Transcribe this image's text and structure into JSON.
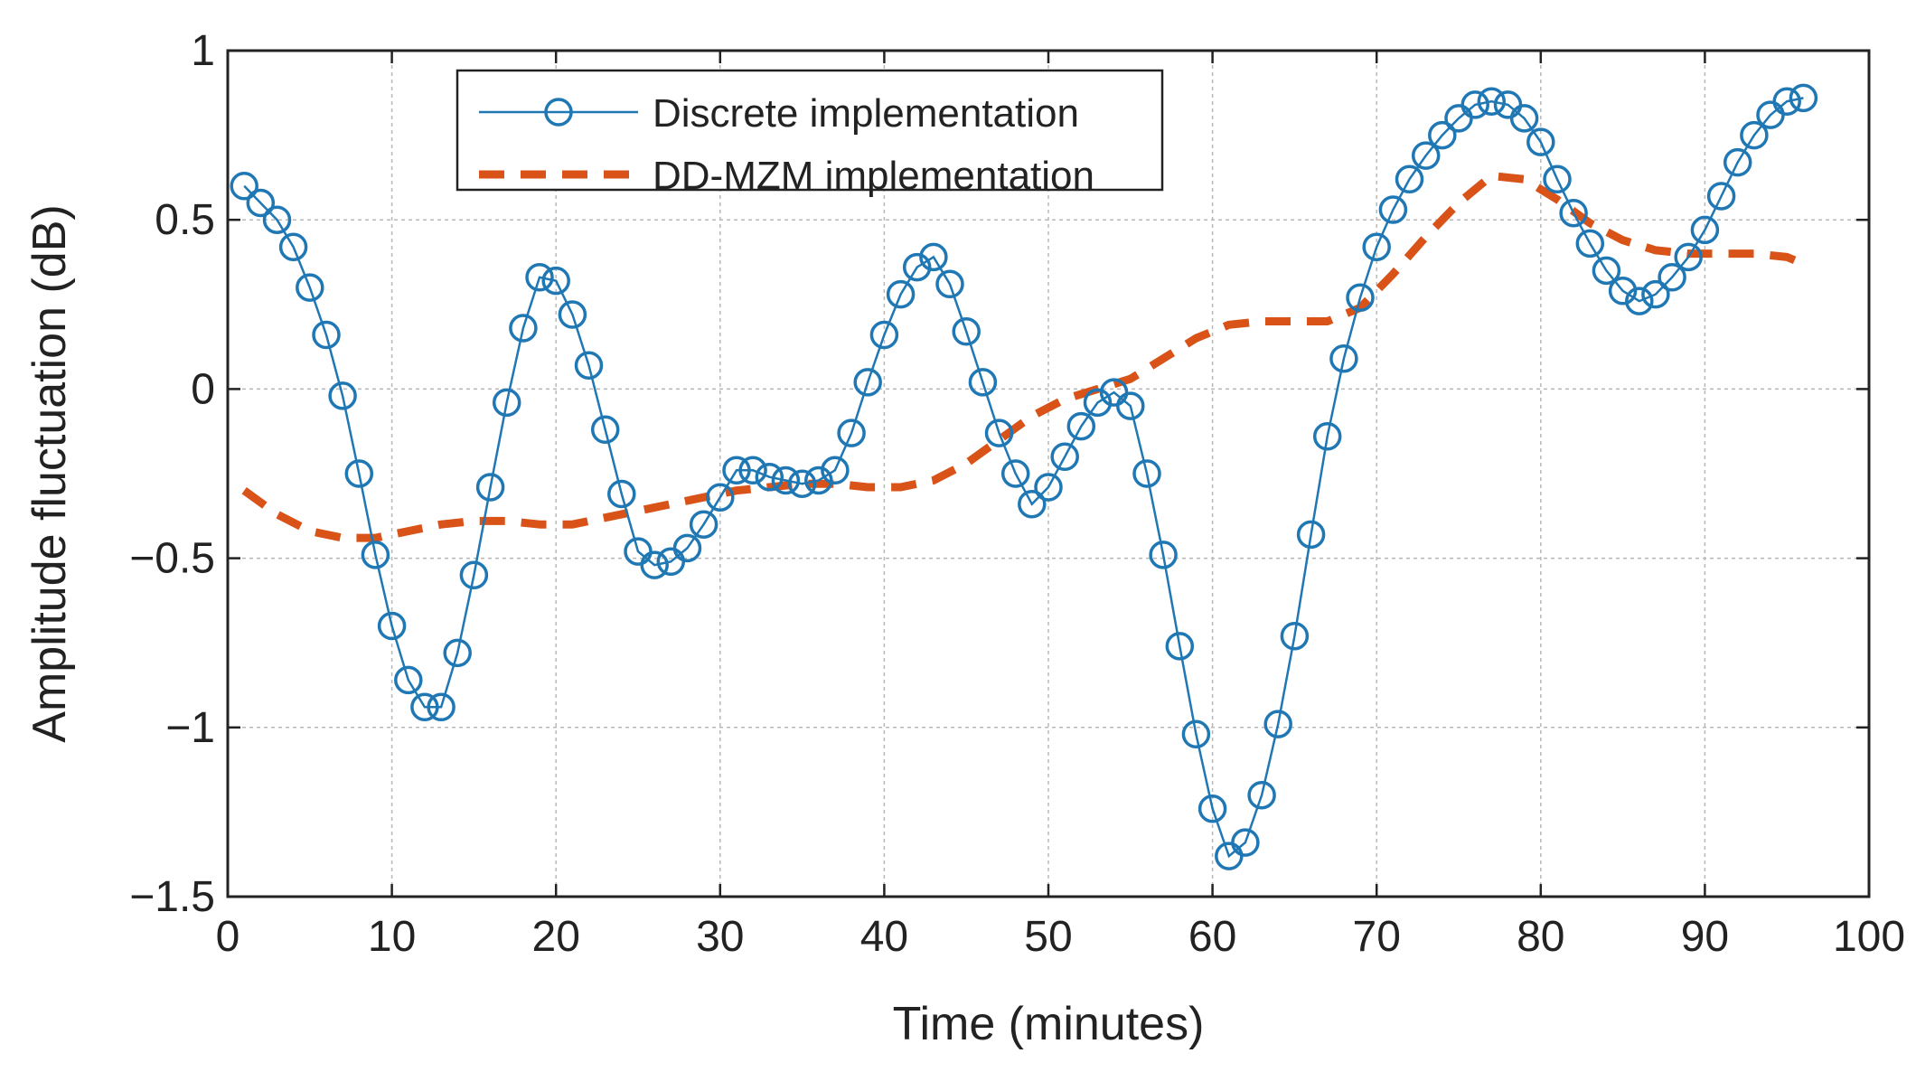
{
  "chart_data": {
    "type": "line",
    "title": "",
    "xlabel": "Time (minutes)",
    "ylabel": "Amplitude fluctuation (dB)",
    "xlim": [
      0,
      100
    ],
    "ylim": [
      -1.5,
      1
    ],
    "xticks": [
      0,
      10,
      20,
      30,
      40,
      50,
      60,
      70,
      80,
      90,
      100
    ],
    "yticks": [
      1,
      0.5,
      0,
      -0.5,
      -1,
      -1.5
    ],
    "ytick_labels": [
      "1",
      "0.5",
      "0",
      "−0.5",
      "−1",
      "−1.5"
    ],
    "grid": true,
    "legend_position": "top-center",
    "series": [
      {
        "name": "Discrete implementation",
        "color": "#1f77b4",
        "style": "solid-line-circle-markers",
        "x": [
          1,
          2,
          3,
          4,
          5,
          6,
          7,
          8,
          9,
          10,
          11,
          12,
          13,
          14,
          15,
          16,
          17,
          18,
          19,
          20,
          21,
          22,
          23,
          24,
          25,
          26,
          27,
          28,
          29,
          30,
          31,
          32,
          33,
          34,
          35,
          36,
          37,
          38,
          39,
          40,
          41,
          42,
          43,
          44,
          45,
          46,
          47,
          48,
          49,
          50,
          51,
          52,
          53,
          54,
          55,
          56,
          57,
          58,
          59,
          60,
          61,
          62,
          63,
          64,
          65,
          66,
          67,
          68,
          69,
          70,
          71,
          72,
          73,
          74,
          75,
          76,
          77,
          78,
          79,
          80,
          81,
          82,
          83,
          84,
          85,
          86,
          87,
          88,
          89,
          90,
          91,
          92,
          93,
          94,
          95,
          96
        ],
        "values": [
          0.6,
          0.55,
          0.5,
          0.42,
          0.3,
          0.16,
          -0.02,
          -0.25,
          -0.49,
          -0.7,
          -0.86,
          -0.94,
          -0.94,
          -0.78,
          -0.55,
          -0.29,
          -0.04,
          0.18,
          0.33,
          0.32,
          0.22,
          0.07,
          -0.12,
          -0.31,
          -0.48,
          -0.52,
          -0.51,
          -0.47,
          -0.4,
          -0.32,
          -0.24,
          -0.24,
          -0.26,
          -0.27,
          -0.28,
          -0.27,
          -0.24,
          -0.13,
          0.02,
          0.16,
          0.28,
          0.36,
          0.39,
          0.31,
          0.17,
          0.02,
          -0.13,
          -0.25,
          -0.34,
          -0.29,
          -0.2,
          -0.11,
          -0.04,
          -0.01,
          -0.05,
          -0.25,
          -0.49,
          -0.76,
          -1.02,
          -1.24,
          -1.38,
          -1.34,
          -1.2,
          -0.99,
          -0.73,
          -0.43,
          -0.14,
          0.09,
          0.27,
          0.42,
          0.53,
          0.62,
          0.69,
          0.75,
          0.8,
          0.84,
          0.85,
          0.84,
          0.8,
          0.73,
          0.62,
          0.52,
          0.43,
          0.35,
          0.29,
          0.26,
          0.28,
          0.33,
          0.39,
          0.47,
          0.57,
          0.67,
          0.75,
          0.81,
          0.85,
          0.86
        ]
      },
      {
        "name": "DD-MZM implementation",
        "color": "#d95319",
        "style": "dashed-line",
        "x": [
          1,
          3,
          5,
          7,
          9,
          11,
          13,
          15,
          17,
          19,
          21,
          23,
          25,
          27,
          29,
          31,
          33,
          35,
          37,
          39,
          41,
          43,
          45,
          47,
          49,
          51,
          53,
          55,
          57,
          59,
          61,
          63,
          65,
          67,
          69,
          71,
          73,
          75,
          77,
          79,
          81,
          83,
          85,
          87,
          89,
          91,
          93,
          95,
          96
        ],
        "values": [
          -0.3,
          -0.37,
          -0.42,
          -0.44,
          -0.44,
          -0.42,
          -0.4,
          -0.39,
          -0.39,
          -0.4,
          -0.4,
          -0.38,
          -0.36,
          -0.34,
          -0.32,
          -0.3,
          -0.29,
          -0.28,
          -0.28,
          -0.29,
          -0.29,
          -0.27,
          -0.22,
          -0.15,
          -0.08,
          -0.03,
          0.0,
          0.03,
          0.09,
          0.15,
          0.19,
          0.2,
          0.2,
          0.2,
          0.24,
          0.34,
          0.45,
          0.55,
          0.63,
          0.62,
          0.56,
          0.49,
          0.44,
          0.41,
          0.4,
          0.4,
          0.4,
          0.39,
          0.37
        ]
      }
    ]
  }
}
